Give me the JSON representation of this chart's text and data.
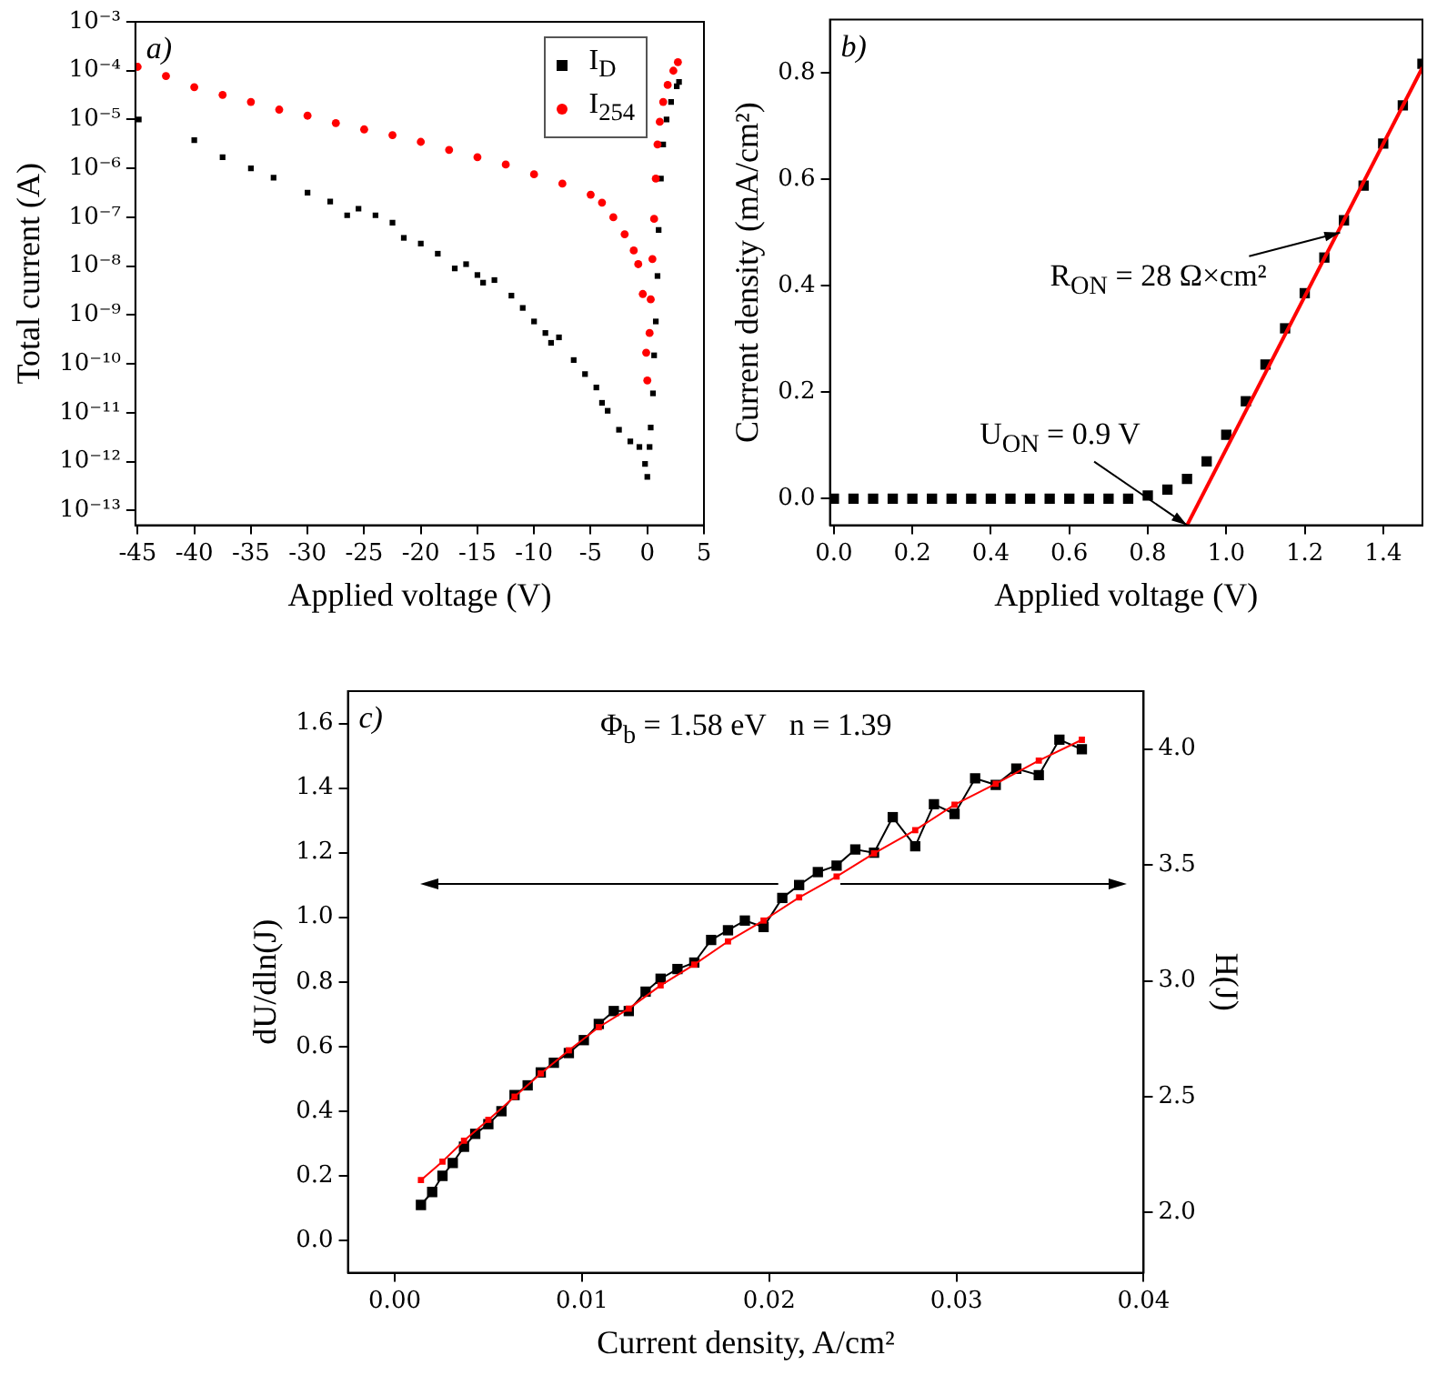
{
  "chart_data": [
    {
      "type": "scatter",
      "xlabel": "Applied voltage (V)",
      "ylabel": "Total current (A)",
      "annotations": [
        "a)"
      ],
      "log": true,
      "legend": "top right",
      "xlim": [
        -45.2,
        5
      ],
      "xticks": [
        -45,
        -40,
        -35,
        -30,
        -25,
        -20,
        -15,
        -10,
        -5,
        0,
        5
      ],
      "ylim": [
        5e-14,
        0.001
      ],
      "yticks": [
        {
          "value": 1e-13,
          "label": "10⁻¹³"
        },
        {
          "value": 1e-12,
          "label": "10⁻¹²"
        },
        {
          "value": 1e-11,
          "label": "10⁻¹¹"
        },
        {
          "value": 1e-10,
          "label": "10⁻¹⁰"
        },
        {
          "value": 1e-09,
          "label": "10⁻⁹"
        },
        {
          "value": 1e-08,
          "label": "10⁻⁸"
        },
        {
          "value": 1e-07,
          "label": "10⁻⁷"
        },
        {
          "value": 1e-06,
          "label": "10⁻⁶"
        },
        {
          "value": 1e-05,
          "label": "10⁻⁵"
        },
        {
          "value": 0.0001,
          "label": "10⁻⁴"
        },
        {
          "value": 0.001,
          "label": "10⁻³"
        }
      ],
      "series": [
        {
          "name": "I$_{D}$",
          "color": "#000000",
          "marker": "square",
          "x": [
            -44.9,
            -40,
            -37.5,
            -35,
            -33,
            -30,
            -28,
            -26.5,
            -25.5,
            -24,
            -22.5,
            -21.5,
            -20,
            -18.5,
            -17,
            -16,
            -15,
            -14.5,
            -13.5,
            -12,
            -11,
            -10,
            -9,
            -8.5,
            -7.8,
            -6.5,
            -5.5,
            -4.5,
            -4,
            -3.5,
            -2.5,
            -1.5,
            -0.7,
            -0.2,
            0,
            0.2,
            0.3,
            0.5,
            0.6,
            0.75,
            0.9,
            1,
            1.2,
            1.4,
            1.7,
            2.1,
            2.6,
            2.8
          ],
          "values": [
            1e-05,
            3.8e-06,
            1.7e-06,
            1e-06,
            6.5e-07,
            3.2e-07,
            2.1e-07,
            1.1e-07,
            1.5e-07,
            1.1e-07,
            7.8e-08,
            3.8e-08,
            2.9e-08,
            1.8e-08,
            9e-09,
            1.1e-08,
            6.6e-09,
            4.6e-09,
            5.2e-09,
            2.5e-09,
            1.4e-09,
            7.4e-10,
            4.3e-10,
            2.7e-10,
            3.5e-10,
            1.2e-10,
            6.2e-11,
            3.3e-11,
            1.6e-11,
            1.1e-11,
            4.5e-12,
            2.6e-12,
            2e-12,
            9e-13,
            4.9e-13,
            2e-12,
            5e-12,
            2.5e-11,
            1.5e-10,
            7.4e-10,
            6.3e-09,
            5.5e-08,
            6.2e-07,
            3.1e-06,
            1e-05,
            2.3e-05,
            4.8e-05,
            5.9e-05
          ]
        },
        {
          "name": "I$_{254}$",
          "color": "#ff0000",
          "marker": "circle",
          "x": [
            -45,
            -42.5,
            -40,
            -37.5,
            -35,
            -32.5,
            -30,
            -27.5,
            -25,
            -22.5,
            -20,
            -17.5,
            -15,
            -12.5,
            -10,
            -7.5,
            -5,
            -4,
            -3,
            -2,
            -1.2,
            -0.8,
            -0.4,
            -0.1,
            0,
            0.2,
            0.3,
            0.45,
            0.6,
            0.75,
            0.9,
            1.1,
            1.4,
            1.8,
            2.3,
            2.7
          ],
          "values": [
            0.00012,
            7.8e-05,
            4.6e-05,
            3.2e-05,
            2.3e-05,
            1.6e-05,
            1.2e-05,
            8.5e-06,
            6.3e-06,
            4.8e-06,
            3.5e-06,
            2.4e-06,
            1.7e-06,
            1.2e-06,
            7.6e-07,
            4.9e-07,
            2.9e-07,
            2e-07,
            1e-07,
            4.5e-08,
            2.1e-08,
            1.1e-08,
            2.7e-09,
            1.7e-10,
            4.6e-11,
            4.3e-10,
            2.1e-09,
            1.4e-08,
            9.3e-08,
            6.2e-07,
            3.1e-06,
            9e-06,
            2.3e-05,
            5.1e-05,
            0.0001,
            0.00015
          ]
        }
      ]
    },
    {
      "type": "scatter",
      "xlabel": "Applied voltage (V)",
      "ylabel": "Current density (mA/cm²)",
      "annotations": [
        "b)",
        {
          "text": "R$_{ON}$ = 28 Ω×cm²",
          "x": 1.29,
          "y": 0.5
        },
        {
          "text": "U$_{ON}$ = 0.9 V",
          "x": 0.9,
          "y": -0.05
        }
      ],
      "xlim": [
        -0.01,
        1.5
      ],
      "xticks": [
        {
          "value": 0,
          "label": "0.0"
        },
        {
          "value": 0.2,
          "label": "0.2"
        },
        {
          "value": 0.4,
          "label": "0.4"
        },
        {
          "value": 0.6,
          "label": "0.6"
        },
        {
          "value": 0.8,
          "label": "0.8"
        },
        {
          "value": 1,
          "label": "1.0"
        },
        {
          "value": 1.2,
          "label": "1.2"
        },
        {
          "value": 1.4,
          "label": "1.4"
        }
      ],
      "ylim": [
        -0.05,
        0.9
      ],
      "yticks": [
        {
          "value": 0,
          "label": "0.0"
        },
        {
          "value": 0.2,
          "label": "0.2"
        },
        {
          "value": 0.4,
          "label": "0.4"
        },
        {
          "value": 0.6,
          "label": "0.6"
        },
        {
          "value": 0.8,
          "label": "0.8"
        }
      ],
      "series": [
        {
          "color": "#000000",
          "marker": "square",
          "x": [
            0,
            0.05,
            0.1,
            0.15,
            0.2,
            0.25,
            0.3,
            0.35,
            0.4,
            0.45,
            0.5,
            0.55,
            0.6,
            0.65,
            0.7,
            0.75,
            0.8,
            0.85,
            0.9,
            0.95,
            1,
            1.05,
            1.1,
            1.15,
            1.2,
            1.25,
            1.3,
            1.35,
            1.4,
            1.45,
            1.5
          ],
          "values": [
            0,
            0,
            0,
            0,
            0,
            0,
            0,
            0,
            0,
            0,
            0,
            0,
            0,
            0,
            0,
            0,
            0.006,
            0.017,
            0.037,
            0.07,
            0.12,
            0.183,
            0.252,
            0.32,
            0.386,
            0.453,
            0.523,
            0.588,
            0.667,
            0.739,
            0.817
          ]
        },
        {
          "type": "line",
          "color": "#ff0000",
          "marker": "none",
          "x": [
            0.9,
            1.5
          ],
          "values": [
            -0.05,
            0.81
          ]
        }
      ]
    },
    {
      "type": "line",
      "xlabel": "Current density, A/cm²",
      "ylabel": "dU/dln(J)",
      "y2label": "H(J)",
      "annotations": [
        "c)",
        "Φ$_{b}$ = 1.58 eV   n = 1.39"
      ],
      "marker": "square",
      "xlim": [
        -0.0025,
        0.04
      ],
      "xticks": [
        {
          "value": 0,
          "label": "0.00"
        },
        0.01,
        0.02,
        0.03,
        {
          "value": 0.04,
          "label": "0.04"
        }
      ],
      "ylim": [
        -0.1,
        1.7
      ],
      "yticks": [
        {
          "value": 0,
          "label": "0.0"
        },
        0.2,
        0.4,
        0.6,
        0.8,
        {
          "value": 1,
          "label": "1.0"
        },
        1.2,
        1.4,
        1.6
      ],
      "y2lim": [
        1.74,
        4.25
      ],
      "y2ticks": [
        {
          "value": 2,
          "label": "2.0"
        },
        2.5,
        {
          "value": 3,
          "label": "3.0"
        },
        3.5,
        {
          "value": 4,
          "label": "4.0"
        }
      ],
      "series": [
        {
          "color": "#000000",
          "x": [
            0.0014,
            0.002,
            0.00255,
            0.0031,
            0.0037,
            0.0043,
            0.005,
            0.0057,
            0.0064,
            0.0071,
            0.0078,
            0.0085,
            0.0093,
            0.0101,
            0.0109,
            0.0117,
            0.0125,
            0.0134,
            0.0142,
            0.0151,
            0.016,
            0.0169,
            0.0178,
            0.0187,
            0.0197,
            0.0207,
            0.0216,
            0.0226,
            0.0236,
            0.0246,
            0.0256,
            0.0266,
            0.0278,
            0.0288,
            0.0299,
            0.031,
            0.0321,
            0.0332,
            0.0344,
            0.0355,
            0.0367
          ],
          "values": [
            0.11,
            0.15,
            0.2,
            0.24,
            0.29,
            0.33,
            0.36,
            0.4,
            0.45,
            0.48,
            0.52,
            0.55,
            0.58,
            0.62,
            0.67,
            0.71,
            0.71,
            0.77,
            0.81,
            0.84,
            0.86,
            0.93,
            0.96,
            0.99,
            0.97,
            1.06,
            1.1,
            1.14,
            1.16,
            1.21,
            1.2,
            1.31,
            1.22,
            1.35,
            1.32,
            1.43,
            1.41,
            1.46,
            1.44,
            1.55,
            1.52
          ]
        },
        {
          "color": "#ff0000",
          "axis": "y2",
          "x": [
            0.0014,
            0.00255,
            0.0037,
            0.005,
            0.0064,
            0.0078,
            0.0093,
            0.0109,
            0.0125,
            0.0142,
            0.016,
            0.0178,
            0.0197,
            0.0216,
            0.0236,
            0.0256,
            0.0278,
            0.0299,
            0.0321,
            0.0344,
            0.0367
          ],
          "values": [
            2.14,
            2.22,
            2.31,
            2.4,
            2.5,
            2.6,
            2.7,
            2.8,
            2.88,
            2.98,
            3.07,
            3.17,
            3.26,
            3.36,
            3.45,
            3.55,
            3.65,
            3.76,
            3.85,
            3.95,
            4.04
          ]
        }
      ]
    }
  ]
}
